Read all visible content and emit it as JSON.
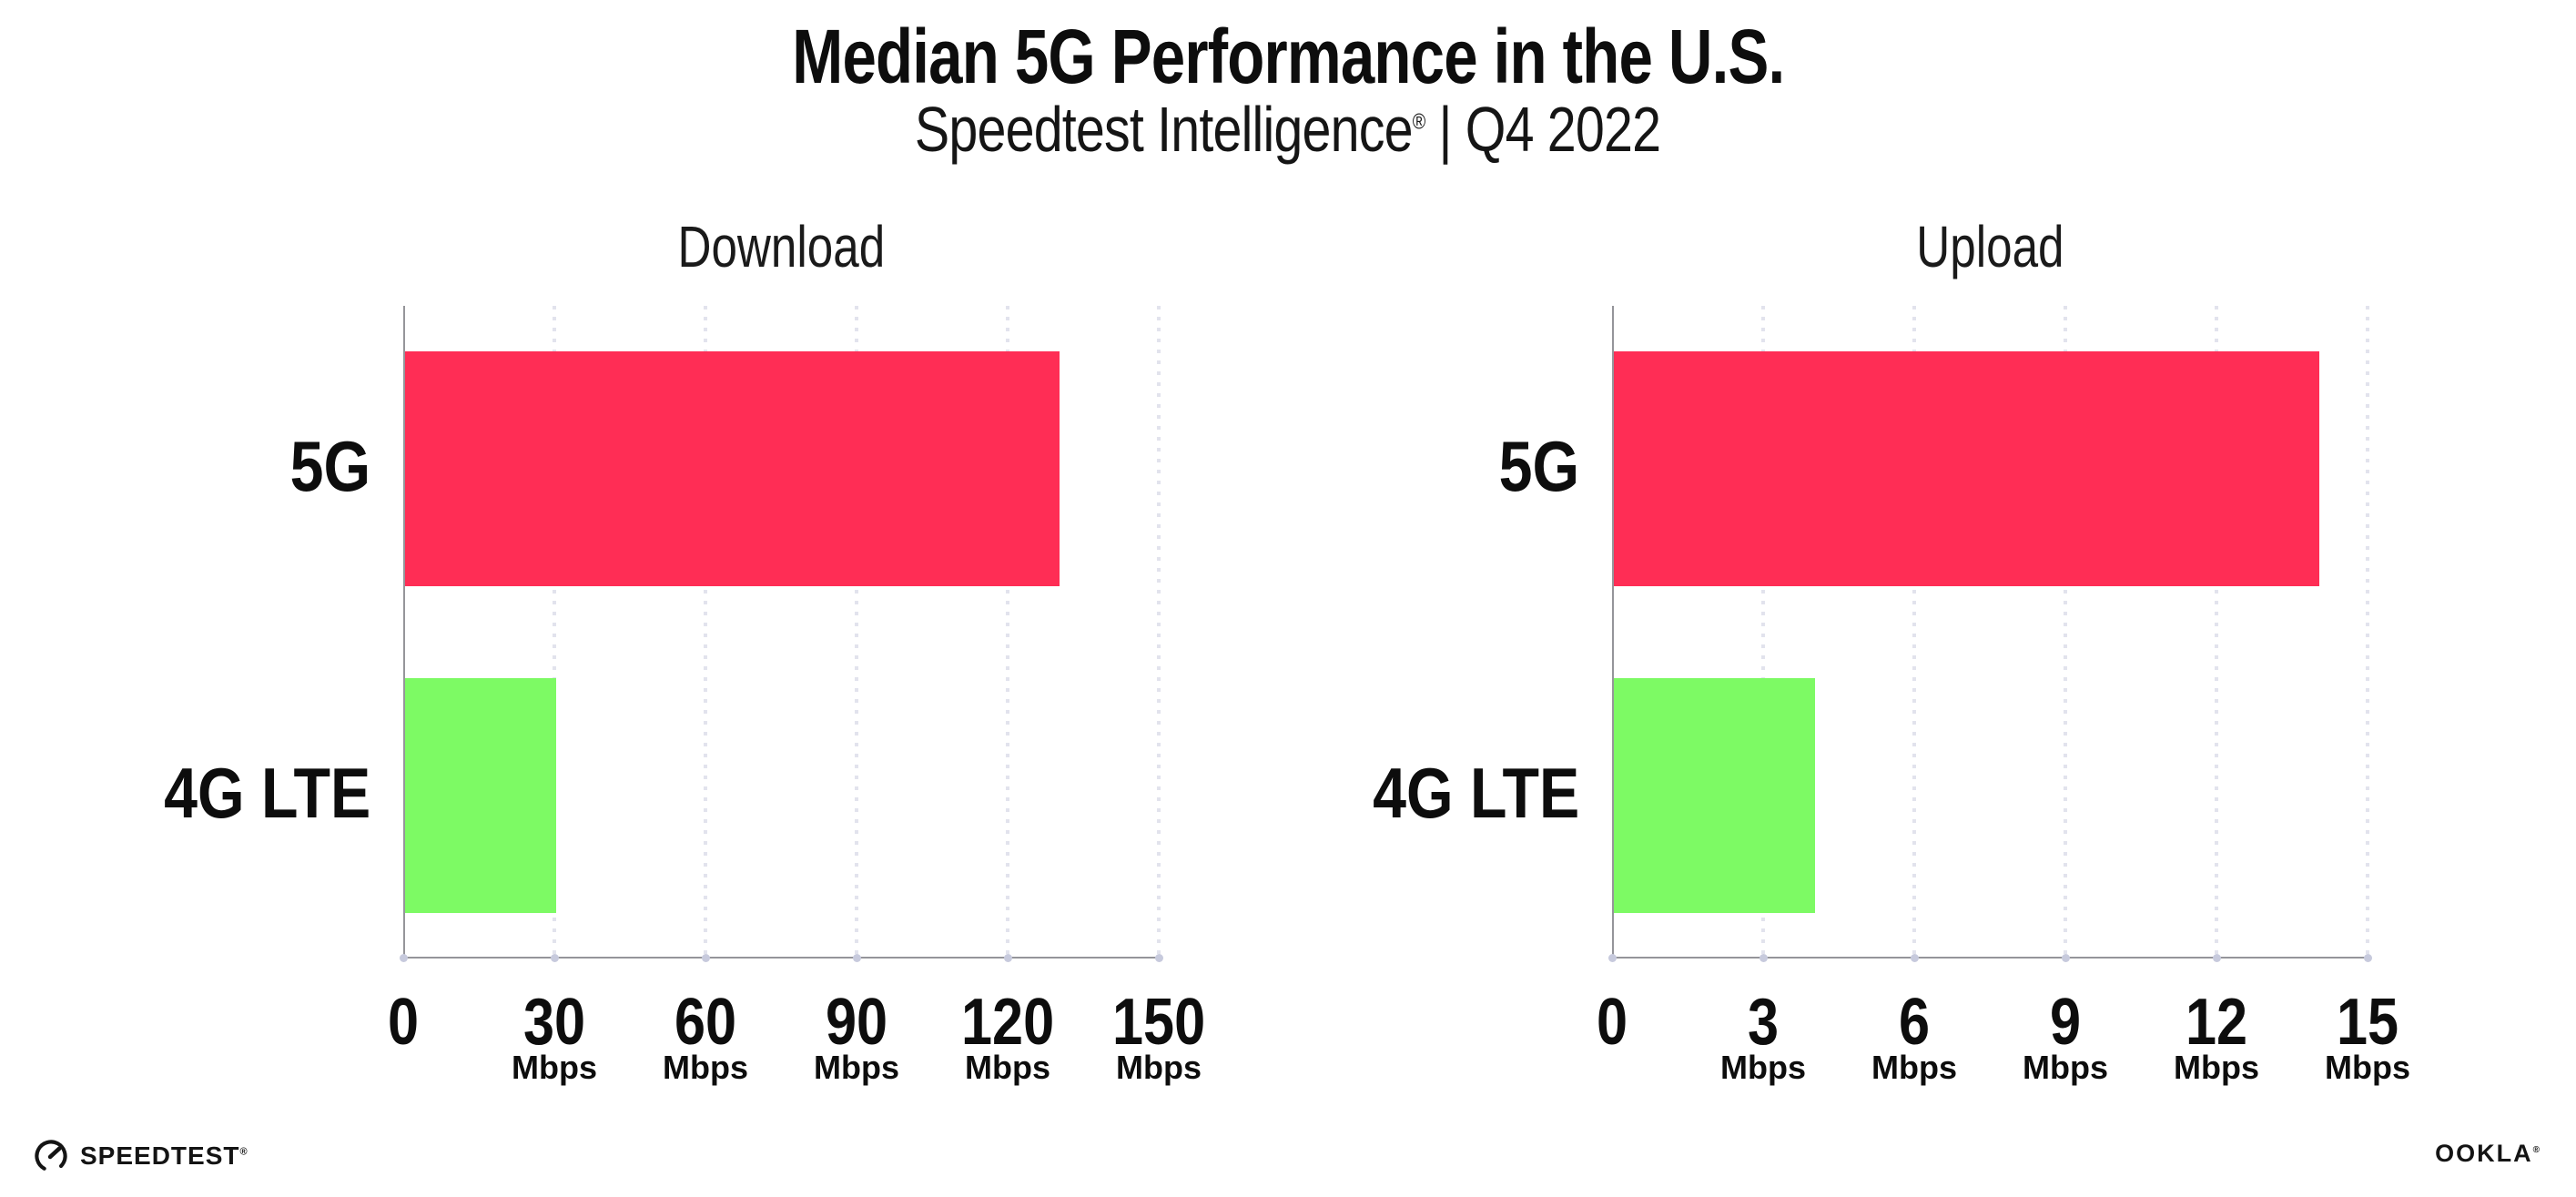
{
  "header": {
    "title": "Median 5G Performance in the U.S.",
    "subtitle_brand": "Speedtest Intelligence",
    "subtitle_reg": "®",
    "subtitle_rest": " | Q4 2022"
  },
  "chart_data": [
    {
      "type": "bar",
      "orientation": "horizontal",
      "title": "Download",
      "categories": [
        "5G",
        "4G LTE"
      ],
      "values": [
        130,
        30
      ],
      "unit": "Mbps",
      "xlim": [
        0,
        150
      ],
      "xticks": [
        0,
        30,
        60,
        90,
        120,
        150
      ],
      "bar_colors": [
        "#FF2D55",
        "#7DFA64"
      ],
      "grid": "vertical-dotted",
      "legend": "none"
    },
    {
      "type": "bar",
      "orientation": "horizontal",
      "title": "Upload",
      "categories": [
        "5G",
        "4G LTE"
      ],
      "values": [
        14,
        4
      ],
      "unit": "Mbps",
      "xlim": [
        0,
        15
      ],
      "xticks": [
        0,
        3,
        6,
        9,
        12,
        15
      ],
      "bar_colors": [
        "#FF2D55",
        "#7DFA64"
      ],
      "grid": "vertical-dotted",
      "legend": "none"
    }
  ],
  "footer": {
    "speedtest_label": "SPEEDTEST",
    "speedtest_reg": "®",
    "ookla_label": "OOKLA",
    "ookla_reg": "®"
  },
  "colors": {
    "bar_5g": "#FF2D55",
    "bar_4g_lte": "#7DFA64",
    "axis": "#95959a",
    "gridline": "#e2e3ed",
    "tick_dot": "#c7cadd",
    "text": "#0d0d0d"
  }
}
